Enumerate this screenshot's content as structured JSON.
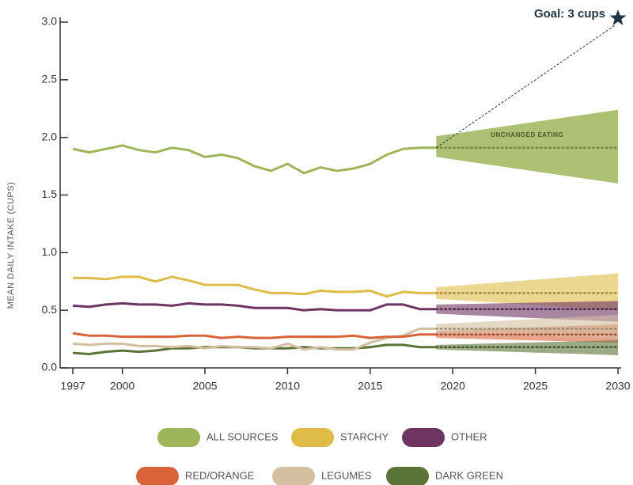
{
  "chart_data": {
    "type": "line",
    "y_label": "MEAN DAILY INTAKE (CUPS)",
    "annotation": "UNCHANGED EATING",
    "goal": {
      "label": "Goal: 3 cups",
      "x": 2030,
      "value": 3
    },
    "xlim": [
      1997,
      2030
    ],
    "xticks": [
      1997,
      2000,
      2005,
      2010,
      2015,
      2020,
      2025,
      2030
    ],
    "ylim": [
      0,
      3
    ],
    "yticks": [
      {
        "value": 0,
        "label": "0.0"
      },
      0.5,
      {
        "value": 1,
        "label": "1.0"
      },
      1.5,
      {
        "value": 2,
        "label": "2.0"
      },
      2.5,
      {
        "value": 3,
        "label": "3.0"
      }
    ],
    "x": [
      1997,
      1998,
      1999,
      2000,
      2001,
      2002,
      2003,
      2004,
      2005,
      2006,
      2007,
      2008,
      2009,
      2010,
      2011,
      2012,
      2013,
      2014,
      2015,
      2016,
      2017,
      2018,
      2019
    ],
    "projection_x": [
      2019,
      2030
    ],
    "series": [
      {
        "name": "ALL SOURCES",
        "color": "#9fb55a",
        "values": [
          1.9,
          1.87,
          1.9,
          1.93,
          1.89,
          1.87,
          1.91,
          1.89,
          1.83,
          1.85,
          1.82,
          1.75,
          1.71,
          1.77,
          1.69,
          1.74,
          1.71,
          1.73,
          1.77,
          1.85,
          1.9,
          1.91,
          1.91
        ],
        "projection": {
          "mid": [
            1.91,
            1.91
          ],
          "low": [
            1.83,
            1.6
          ],
          "high": [
            2.01,
            2.24
          ]
        }
      },
      {
        "name": "STARCHY",
        "color": "#dfbc48",
        "values": [
          0.78,
          0.78,
          0.77,
          0.79,
          0.79,
          0.75,
          0.79,
          0.76,
          0.72,
          0.72,
          0.72,
          0.68,
          0.65,
          0.65,
          0.64,
          0.67,
          0.66,
          0.66,
          0.67,
          0.62,
          0.66,
          0.65,
          0.65
        ],
        "projection": {
          "mid": [
            0.65,
            0.65
          ],
          "low": [
            0.6,
            0.5
          ],
          "high": [
            0.7,
            0.82
          ]
        }
      },
      {
        "name": "OTHER",
        "color": "#6e3462",
        "values": [
          0.54,
          0.53,
          0.55,
          0.56,
          0.55,
          0.55,
          0.54,
          0.56,
          0.55,
          0.55,
          0.54,
          0.52,
          0.52,
          0.52,
          0.5,
          0.51,
          0.5,
          0.5,
          0.5,
          0.55,
          0.55,
          0.51,
          0.51
        ],
        "projection": {
          "mid": [
            0.51,
            0.51
          ],
          "low": [
            0.47,
            0.4
          ],
          "high": [
            0.55,
            0.58
          ]
        }
      },
      {
        "name": "RED/ORANGE",
        "color": "#d9643a",
        "values": [
          0.3,
          0.28,
          0.28,
          0.27,
          0.27,
          0.27,
          0.27,
          0.28,
          0.28,
          0.26,
          0.27,
          0.26,
          0.26,
          0.27,
          0.27,
          0.27,
          0.27,
          0.28,
          0.26,
          0.27,
          0.27,
          0.29,
          0.29
        ],
        "projection": {
          "mid": [
            0.29,
            0.29
          ],
          "low": [
            0.26,
            0.22
          ],
          "high": [
            0.32,
            0.38
          ]
        }
      },
      {
        "name": "LEGUMES",
        "color": "#d4bfa0",
        "values": [
          0.21,
          0.2,
          0.21,
          0.21,
          0.19,
          0.19,
          0.18,
          0.19,
          0.17,
          0.19,
          0.18,
          0.18,
          0.17,
          0.21,
          0.16,
          0.18,
          0.16,
          0.16,
          0.22,
          0.26,
          0.28,
          0.34,
          0.34
        ],
        "projection": {
          "mid": [
            0.34,
            0.34
          ],
          "low": [
            0.3,
            0.26
          ],
          "high": [
            0.38,
            0.46
          ]
        }
      },
      {
        "name": "DARK GREEN",
        "color": "#5a7336",
        "values": [
          0.13,
          0.12,
          0.14,
          0.15,
          0.14,
          0.15,
          0.17,
          0.17,
          0.18,
          0.18,
          0.18,
          0.17,
          0.17,
          0.17,
          0.18,
          0.17,
          0.17,
          0.17,
          0.18,
          0.2,
          0.2,
          0.18,
          0.18
        ],
        "projection": {
          "mid": [
            0.18,
            0.18
          ],
          "low": [
            0.16,
            0.11
          ],
          "high": [
            0.2,
            0.24
          ]
        }
      }
    ]
  }
}
